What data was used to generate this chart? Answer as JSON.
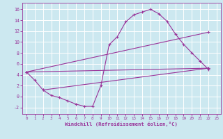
{
  "bg_color": "#cce8f0",
  "grid_color": "#ffffff",
  "line_color": "#993399",
  "xlabel": "Windchill (Refroidissement éolien,°C)",
  "xlim": [
    -0.5,
    23.5
  ],
  "ylim": [
    -3.2,
    17.2
  ],
  "yticks": [
    -2,
    0,
    2,
    4,
    6,
    8,
    10,
    12,
    14,
    16
  ],
  "xticks": [
    0,
    1,
    2,
    3,
    4,
    5,
    6,
    7,
    8,
    9,
    10,
    11,
    12,
    13,
    14,
    15,
    16,
    17,
    18,
    19,
    20,
    21,
    22,
    23
  ],
  "curve": {
    "x": [
      0,
      1,
      2,
      3,
      4,
      5,
      6,
      7,
      8,
      9,
      10,
      11,
      12,
      13,
      14,
      15,
      16,
      17,
      18,
      19,
      20,
      21,
      22
    ],
    "y": [
      4.5,
      3.0,
      1.2,
      0.2,
      -0.2,
      -0.8,
      -1.4,
      -1.8,
      -1.8,
      2.0,
      9.5,
      11.0,
      13.7,
      15.0,
      15.5,
      16.0,
      15.2,
      13.8,
      11.5,
      9.6,
      8.0,
      6.5,
      5.0
    ]
  },
  "line1": {
    "x": [
      0,
      22
    ],
    "y": [
      4.5,
      5.2
    ]
  },
  "line2": {
    "x": [
      0,
      22
    ],
    "y": [
      4.5,
      11.8
    ]
  },
  "line3": {
    "x": [
      2,
      22
    ],
    "y": [
      1.2,
      5.2
    ]
  }
}
